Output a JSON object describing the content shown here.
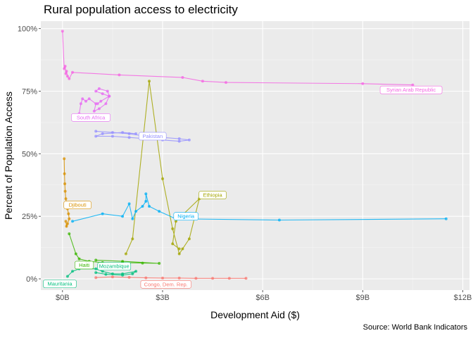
{
  "title": "Rural population access to electricity",
  "caption": "Source: World Bank Indicators",
  "chart_data": {
    "type": "line",
    "xlabel": "Development Aid ($)",
    "ylabel": "Percent of Population Access",
    "xlim": [
      -0.65,
      12.2
    ],
    "ylim": [
      -4.5,
      103
    ],
    "x_ticks": [
      0,
      3,
      6,
      9,
      12
    ],
    "x_tick_labels": [
      "$0B",
      "$3B",
      "$6B",
      "$9B",
      "$12B"
    ],
    "y_ticks": [
      0,
      25,
      50,
      75,
      100
    ],
    "y_tick_labels": [
      "0%",
      "25%",
      "50%",
      "75%",
      "100%"
    ],
    "grid": true,
    "legend": "none",
    "series": [
      {
        "name": "Syrian Arab Republic",
        "color": "#F564E3",
        "x": [
          0.0,
          0.05,
          0.08,
          0.1,
          0.12,
          0.15,
          0.2,
          0.3,
          1.7,
          3.6,
          4.2,
          4.9,
          9.0,
          10.5
        ],
        "y": [
          99,
          84,
          85,
          82,
          83,
          81,
          80,
          82.5,
          81.5,
          80.5,
          79,
          78.5,
          78,
          77.5
        ]
      },
      {
        "name": "South Africa",
        "color": "#E76BF3",
        "x": [
          0.5,
          0.55,
          0.6,
          0.7,
          0.8,
          1.0,
          0.95,
          1.1,
          1.3,
          1.4,
          1.2,
          1.0,
          1.1,
          1.35,
          1.4,
          1.15,
          1.05
        ],
        "y": [
          66,
          70,
          72,
          71,
          72,
          70,
          67,
          68,
          70,
          73,
          74,
          75,
          76,
          75,
          73,
          71,
          70
        ]
      },
      {
        "name": "Pakistan",
        "color": "#9590FF",
        "x": [
          1.0,
          1.5,
          2.0,
          2.5,
          3.0,
          3.5,
          3.8,
          3.5,
          3.0,
          2.5,
          2.0,
          1.5,
          1.0,
          1.2,
          1.8,
          2.2
        ],
        "y": [
          59,
          58.5,
          58,
          57,
          56.5,
          56,
          55.5,
          55,
          55.5,
          56,
          56.5,
          57,
          57,
          58,
          58.5,
          58
        ]
      },
      {
        "name": "Djibouti",
        "color": "#D89000",
        "x": [
          0.05,
          0.06,
          0.07,
          0.08,
          0.1,
          0.12,
          0.15,
          0.18,
          0.2,
          0.15,
          0.12,
          0.1
        ],
        "y": [
          48,
          42,
          38,
          35,
          32,
          30,
          28,
          26,
          24,
          22,
          21,
          23
        ]
      },
      {
        "name": "Ethiopia",
        "color": "#A3A500",
        "x": [
          1.9,
          2.1,
          2.6,
          3.0,
          3.3,
          3.5,
          3.6,
          3.8,
          4.1,
          3.4,
          3.3,
          3.5
        ],
        "y": [
          10,
          16,
          79,
          40,
          20,
          10,
          12,
          16,
          32,
          23,
          14,
          12
        ]
      },
      {
        "name": "Nigeria",
        "color": "#00B0F6",
        "x": [
          0.3,
          1.2,
          1.8,
          2.0,
          2.1,
          2.2,
          2.4,
          2.5,
          2.5,
          2.6,
          2.9,
          3.4,
          6.5,
          11.5
        ],
        "y": [
          23,
          26,
          25,
          30,
          24,
          27,
          29,
          31,
          34,
          29,
          27,
          24,
          23.5,
          24
        ]
      },
      {
        "name": "Haiti",
        "color": "#39B600",
        "x": [
          0.2,
          0.4,
          0.5,
          0.8,
          1.2,
          1.8,
          2.4,
          2.9,
          1.8,
          1.0
        ],
        "y": [
          18,
          10,
          8,
          7,
          6.5,
          6.5,
          6.3,
          6.2,
          7,
          7.5
        ]
      },
      {
        "name": "Mozambique",
        "color": "#00BF7D",
        "x": [
          0.15,
          0.3,
          0.5,
          1.0,
          1.2,
          1.5,
          1.8,
          2.2,
          2.1,
          1.8,
          1.3,
          1.0
        ],
        "y": [
          1,
          3,
          4,
          4,
          3,
          2,
          2,
          3,
          2,
          1.5,
          1.8,
          2.5
        ]
      },
      {
        "name": "Congo, Dem. Rep.",
        "color": "#F8766D",
        "x": [
          1.0,
          1.5,
          2.0,
          2.5,
          3.0,
          3.5,
          4.0,
          4.5,
          5.0,
          5.5
        ],
        "y": [
          0.5,
          0.8,
          0.6,
          0.4,
          0.3,
          0.3,
          0.2,
          0.2,
          0.2,
          0.2
        ]
      }
    ],
    "labels": [
      {
        "text": "Syrian Arab Republic",
        "color": "#F564E3",
        "x": 10.45,
        "y": 75.5
      },
      {
        "text": "South Africa",
        "color": "#E76BF3",
        "x": 0.85,
        "y": 64.5
      },
      {
        "text": "Pakistan",
        "color": "#9590FF",
        "x": 2.7,
        "y": 57
      },
      {
        "text": "Djibouti",
        "color": "#D89000",
        "x": 0.45,
        "y": 29.5
      },
      {
        "text": "Ethiopia",
        "color": "#A3A500",
        "x": 4.5,
        "y": 33.5
      },
      {
        "text": "Nigeria",
        "color": "#00B0F6",
        "x": 3.7,
        "y": 25
      },
      {
        "text": "Haiti",
        "color": "#39B600",
        "x": 0.65,
        "y": 5.5
      },
      {
        "text": "Mozambique",
        "color": "#00BF7D",
        "x": 1.55,
        "y": 5
      },
      {
        "text": "Mauritania",
        "color": "#00BF7D",
        "x": -0.08,
        "y": -2
      },
      {
        "text": "Congo, Dem. Rep.",
        "color": "#F8766D",
        "x": 3.1,
        "y": -2.2
      }
    ]
  }
}
